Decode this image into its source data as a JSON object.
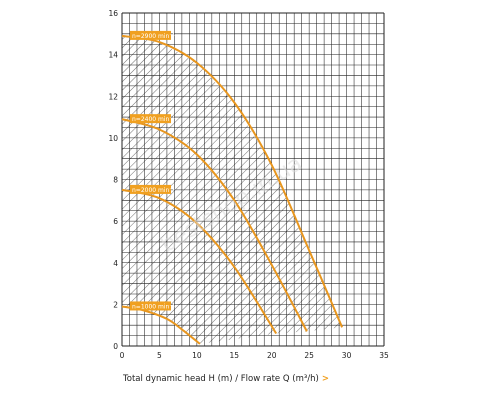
{
  "chart_data": {
    "type": "line",
    "title": "",
    "xlabel": "Total dynamic head H (m) / Flow rate Q (m³/h)",
    "xlabel_arrow": ">",
    "ylabel": "",
    "xlim": [
      0,
      35
    ],
    "ylim": [
      0,
      16
    ],
    "x_ticks": [
      0,
      5,
      10,
      15,
      20,
      25,
      30,
      35
    ],
    "y_ticks": [
      0,
      2,
      4,
      6,
      8,
      10,
      12,
      14,
      16
    ],
    "grid": true,
    "operating_area_hatched": true,
    "colors": {
      "curve": "#e8961e",
      "label_bg": "#f0a020",
      "grid": "#222222",
      "hatch": "#333333"
    },
    "series": [
      {
        "label": "n=2900 min⁻¹",
        "x": [
          0,
          5,
          10,
          15,
          20,
          25,
          29.4
        ],
        "y": [
          14.9,
          14.6,
          13.6,
          11.7,
          8.7,
          4.6,
          0.9
        ]
      },
      {
        "label": "n=2400 min⁻¹",
        "x": [
          0,
          5,
          10,
          15,
          20,
          24.7
        ],
        "y": [
          10.9,
          10.4,
          9.2,
          7.0,
          3.9,
          0.7
        ]
      },
      {
        "label": "n=2000 min⁻¹",
        "x": [
          0,
          5,
          10,
          15,
          20.6
        ],
        "y": [
          7.5,
          7.1,
          5.9,
          3.8,
          0.6
        ]
      },
      {
        "label": "n=1000 min⁻¹",
        "x": [
          0,
          3,
          6,
          8,
          10.4
        ],
        "y": [
          1.9,
          1.7,
          1.3,
          0.8,
          0.1
        ]
      }
    ],
    "hatched_boundary": {
      "top": {
        "x": [
          0,
          5,
          10,
          15,
          20,
          25,
          29.4
        ],
        "y": [
          14.9,
          14.6,
          13.6,
          11.7,
          8.7,
          4.6,
          0.9
        ]
      },
      "bottom": {
        "x": [
          0,
          3,
          6,
          8,
          10.4,
          20.6,
          24.7,
          29.4
        ],
        "y": [
          1.9,
          1.7,
          1.3,
          0.8,
          0.1,
          0.6,
          0.7,
          0.9
        ]
      }
    },
    "watermark": "bestshop.in.ua"
  }
}
